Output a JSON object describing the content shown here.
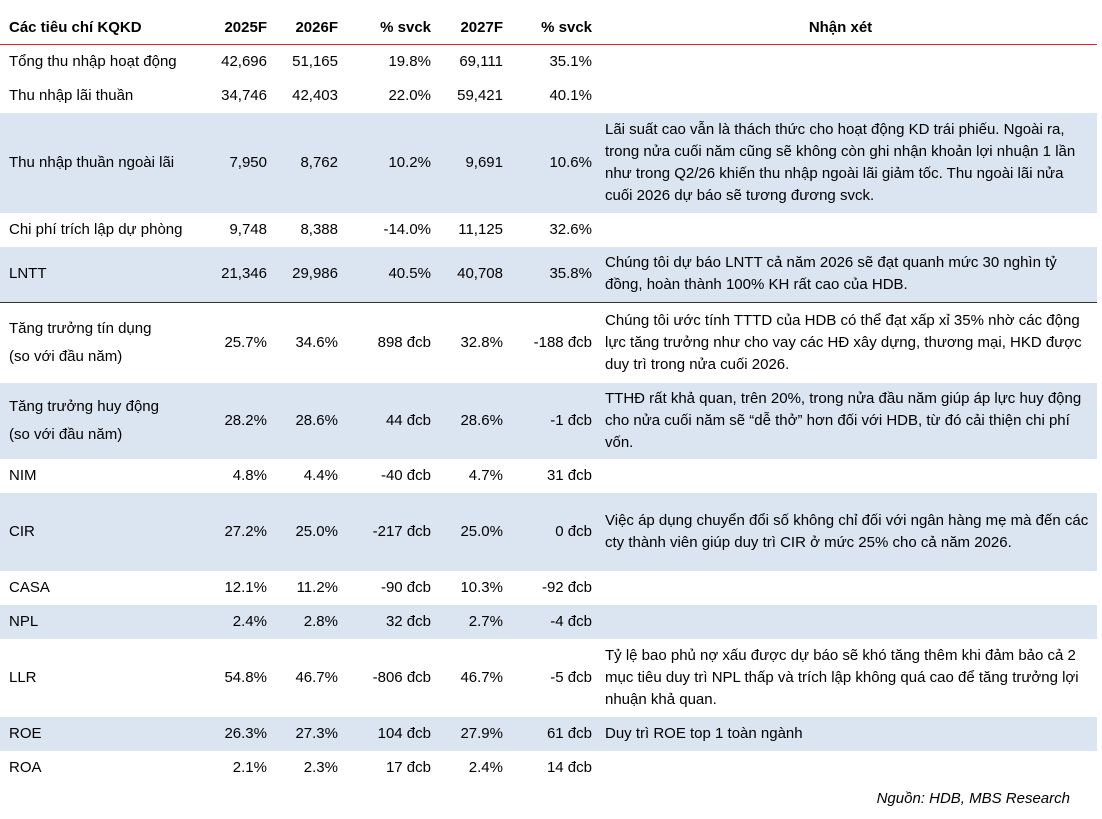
{
  "headers": [
    "Các tiêu chí KQKD",
    "2025F",
    "2026F",
    "% svck",
    "2027F",
    "% svck",
    "Nhận xét"
  ],
  "rows": [
    {
      "label": "Tổng thu nhập hoạt động",
      "v2025": "42,696",
      "v2026": "51,165",
      "g2026": "19.8%",
      "v2027": "69,111",
      "g2027": "35.1%",
      "comment": ""
    },
    {
      "label": "Thu nhập lãi thuần",
      "v2025": "34,746",
      "v2026": "42,403",
      "g2026": "22.0%",
      "v2027": "59,421",
      "g2027": "40.1%",
      "comment": ""
    },
    {
      "label": "Thu nhập thuần ngoài lãi",
      "v2025": "7,950",
      "v2026": "8,762",
      "g2026": "10.2%",
      "v2027": "9,691",
      "g2027": "10.6%",
      "comment": "Lãi suất cao vẫn là thách thức cho hoạt động KD trái phiếu. Ngoài ra, trong nửa cuối năm cũng sẽ không còn ghi nhận khoản lợi nhuận 1 lần như trong Q2/26 khiến thu nhập ngoài lãi giảm tốc. Thu ngoài lãi nửa cuối 2026 dự báo sẽ tương đương svck."
    },
    {
      "label": "Chi phí trích lập dự phòng",
      "v2025": "9,748",
      "v2026": "8,388",
      "g2026": "-14.0%",
      "v2027": "11,125",
      "g2027": "32.6%",
      "comment": ""
    },
    {
      "label": "LNTT",
      "v2025": "21,346",
      "v2026": "29,986",
      "g2026": "40.5%",
      "v2027": "40,708",
      "g2027": "35.8%",
      "comment": "Chúng tôi dự báo LNTT cả năm 2026 sẽ đạt quanh mức 30 nghìn tỷ đồng, hoàn thành 100% KH rất cao của HDB."
    },
    {
      "label": "Tăng trưởng tín dụng",
      "label2": "(so với đầu năm)",
      "v2025": "25.7%",
      "v2026": "34.6%",
      "g2026": "898 đcb",
      "v2027": "32.8%",
      "g2027": "-188 đcb",
      "comment": "Chúng tôi ước tính TTTD của HDB có thể đạt xấp xỉ 35% nhờ các động lực tăng trưởng như cho vay các HĐ xây dựng, thương mại, HKD được duy trì trong nửa cuối 2026."
    },
    {
      "label": "Tăng trưởng huy động",
      "label2": "(so với đầu năm)",
      "v2025": "28.2%",
      "v2026": "28.6%",
      "g2026": "44 đcb",
      "v2027": "28.6%",
      "g2027": "-1 đcb",
      "comment": "TTHĐ rất khả quan, trên 20%, trong nửa đầu năm giúp áp lực huy động cho nửa cuối năm sẽ “dễ thở” hơn đối với HDB, từ đó cải thiện chi phí vốn."
    },
    {
      "label": "NIM",
      "v2025": "4.8%",
      "v2026": "4.4%",
      "g2026": "-40 đcb",
      "v2027": "4.7%",
      "g2027": "31 đcb",
      "comment": ""
    },
    {
      "label": "CIR",
      "v2025": "27.2%",
      "v2026": "25.0%",
      "g2026": "-217 đcb",
      "v2027": "25.0%",
      "g2027": "0 đcb",
      "comment": "Việc áp dụng chuyển đổi số không chỉ đối với ngân hàng mẹ mà đến các cty thành viên giúp duy trì CIR ở mức 25% cho cả năm 2026."
    },
    {
      "label": "CASA",
      "v2025": "12.1%",
      "v2026": "11.2%",
      "g2026": "-90 đcb",
      "v2027": "10.3%",
      "g2027": "-92 đcb",
      "comment": ""
    },
    {
      "label": "NPL",
      "v2025": "2.4%",
      "v2026": "2.8%",
      "g2026": "32 đcb",
      "v2027": "2.7%",
      "g2027": "-4 đcb",
      "comment": ""
    },
    {
      "label": "LLR",
      "v2025": "54.8%",
      "v2026": "46.7%",
      "g2026": "-806 đcb",
      "v2027": "46.7%",
      "g2027": "-5 đcb",
      "comment": "Tỷ lệ bao phủ nợ xấu được dự báo sẽ khó tăng thêm khi đảm bảo cả 2 mục tiêu duy trì NPL thấp và trích lập không quá cao để tăng trưởng lợi nhuận khả quan."
    },
    {
      "label": "ROE",
      "v2025": "26.3%",
      "v2026": "27.3%",
      "g2026": "104 đcb",
      "v2027": "27.9%",
      "g2027": "61 đcb",
      "comment": "Duy trì ROE top 1 toàn ngành"
    },
    {
      "label": "ROA",
      "v2025": "2.1%",
      "v2026": "2.3%",
      "g2026": "17 đcb",
      "v2027": "2.4%",
      "g2027": "14 đcb",
      "comment": ""
    }
  ],
  "source": "Nguồn: HDB, MBS Research"
}
